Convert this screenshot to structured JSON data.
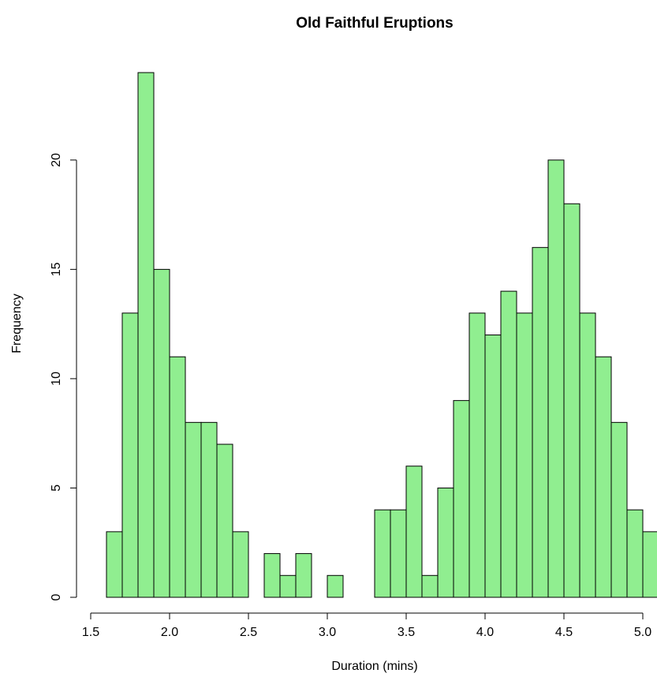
{
  "chart_data": {
    "type": "histogram",
    "title": "Old Faithful Eruptions",
    "x_label": "Duration (mins)",
    "y_label": "Frequency",
    "bins": [
      1.6,
      1.7,
      1.8,
      1.9,
      2.0,
      2.1,
      2.2,
      2.3,
      2.4,
      2.5,
      2.6,
      2.7,
      2.8,
      2.9,
      3.0,
      3.1,
      3.2,
      3.3,
      3.4,
      3.5,
      3.6,
      3.7,
      3.8,
      3.9,
      4.0,
      4.1,
      4.2,
      4.3,
      4.4,
      4.5,
      4.6,
      4.7,
      4.8,
      4.9,
      5.0,
      5.1
    ],
    "values": [
      3,
      13,
      24,
      15,
      11,
      8,
      8,
      7,
      3,
      0,
      2,
      1,
      2,
      0,
      1,
      0,
      0,
      4,
      4,
      6,
      1,
      5,
      9,
      13,
      12,
      14,
      13,
      16,
      20,
      18,
      13,
      11,
      8,
      4,
      3
    ],
    "color": "#90ee90",
    "xlim": [
      1.5,
      5.0
    ],
    "xticks": [
      {
        "value": 1.5,
        "label": "1.5"
      },
      {
        "value": 2,
        "label": "2.0"
      },
      {
        "value": 2.5,
        "label": "2.5"
      },
      {
        "value": 3,
        "label": "3.0"
      },
      {
        "value": 3.5,
        "label": "3.5"
      },
      {
        "value": 4,
        "label": "4.0"
      },
      {
        "value": 4.5,
        "label": "4.5"
      },
      {
        "value": 5,
        "label": "5.0"
      }
    ],
    "ylim": [
      0,
      24
    ],
    "yticks": [
      0,
      5,
      10,
      15,
      20
    ]
  }
}
